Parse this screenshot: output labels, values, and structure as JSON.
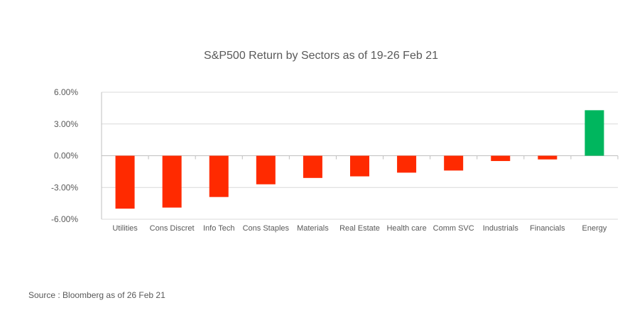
{
  "chart_data": {
    "type": "bar",
    "title": "S&P500 Return by Sectors as of 19-26 Feb 21",
    "xlabel": "",
    "ylabel": "",
    "categories": [
      "Utilities",
      "Cons Discret",
      "Info Tech",
      "Cons Staples",
      "Materials",
      "Real Estate",
      "Health care",
      "Comm SVC",
      "Industrials",
      "Financials",
      "Energy"
    ],
    "values": [
      -5.0,
      -4.9,
      -3.9,
      -2.7,
      -2.1,
      -1.95,
      -1.6,
      -1.4,
      -0.5,
      -0.35,
      4.3
    ],
    "ylim": [
      -6,
      6
    ],
    "yticks": [
      6,
      3,
      0,
      -3,
      -6
    ],
    "ytick_labels": [
      "6.00%",
      "3.00%",
      "0.00%",
      "-3.00%",
      "-6.00%"
    ],
    "grid": true,
    "legend": "none",
    "colors": {
      "negative": "#ff2a00",
      "positive": "#00b65e",
      "grid": "#d9d9d9",
      "axis": "#bfbfbf"
    }
  },
  "footer": {
    "source": "Source : Bloomberg as of 26 Feb 21"
  }
}
